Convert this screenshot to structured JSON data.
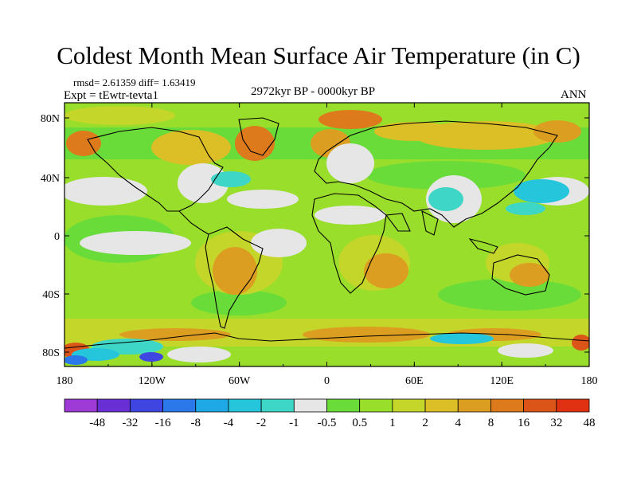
{
  "title": "Coldest Month Mean Surface Air Temperature (in C)",
  "stats": "rmsd= 2.61359 diff= 1.63419",
  "experiment": "Expt = tEwtr-tevta1",
  "period": "2972kyr BP - 0000kyr BP",
  "season": "ANN",
  "axes": {
    "lat_ticks": [
      "80N",
      "40N",
      "0",
      "40S",
      "80S"
    ],
    "lon_ticks": [
      "180",
      "120W",
      "60W",
      "0",
      "60E",
      "120E",
      "180"
    ]
  },
  "colorbar": {
    "colors": [
      "#9e3ad6",
      "#6a2fd4",
      "#3e45e0",
      "#2a78ea",
      "#1fa8e6",
      "#25c6dc",
      "#3ed6c6",
      "#e6e6e6",
      "#6adc3a",
      "#9ade2c",
      "#c4d62a",
      "#dcbe26",
      "#dc9e20",
      "#dc7a1c",
      "#dc5518",
      "#e03212"
    ],
    "labels": [
      "-48",
      "-32",
      "-16",
      "-8",
      "-4",
      "-2",
      "-1",
      "-0.5",
      "0.5",
      "1",
      "2",
      "4",
      "8",
      "16",
      "32",
      "48"
    ]
  },
  "map_colors": {
    "base": "#9ade2c",
    "green": "#6adc3a",
    "yellow": "#c4d62a",
    "gold": "#dcbe26",
    "orange": "#dc9e20",
    "deep_orange": "#dc7a1c",
    "red": "#dc5518",
    "gray": "#e6e6e6",
    "teal": "#3ed6c6",
    "cyan": "#25c6dc",
    "blue": "#2a78ea",
    "deep_blue": "#3e45e0"
  }
}
